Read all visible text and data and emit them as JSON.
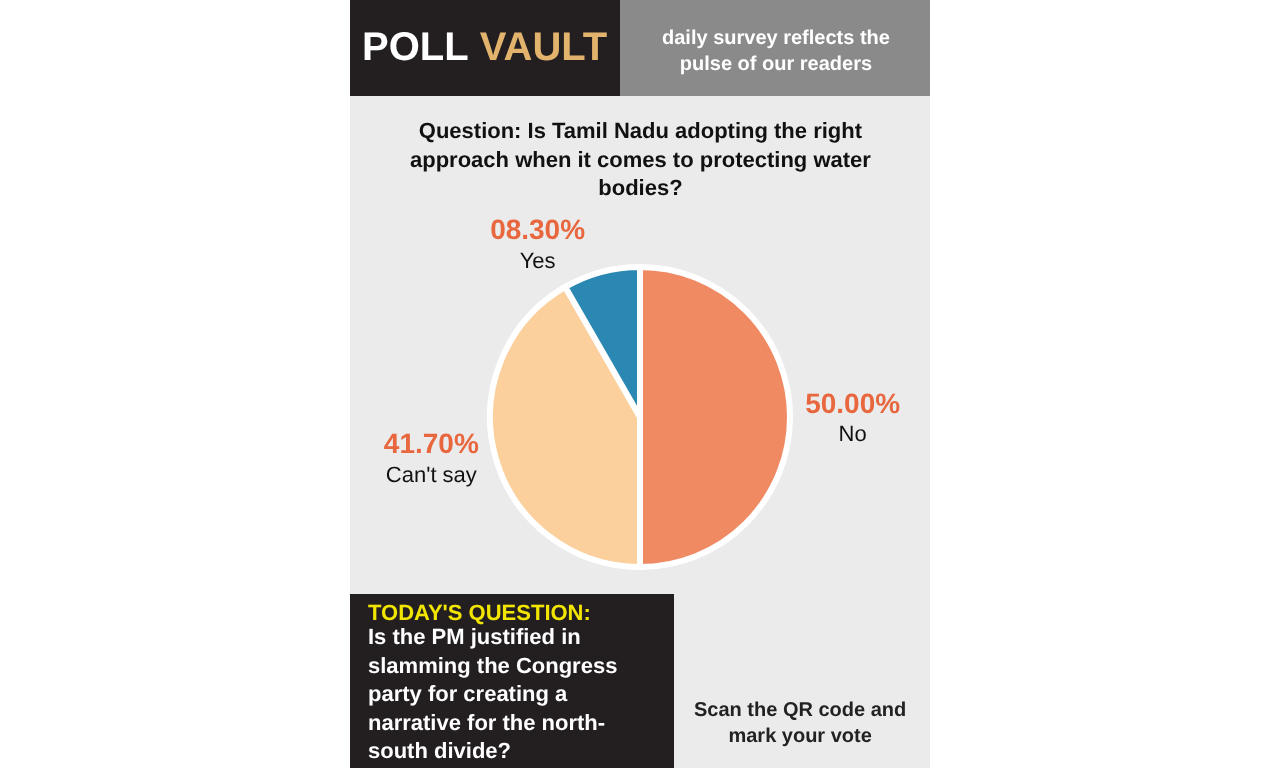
{
  "chart_data": {
    "type": "pie",
    "title": "POLL VAULT",
    "subtitle": "daily survey reflects the pulse of our readers",
    "categories": [
      "No",
      "Can't say",
      "Yes"
    ],
    "values": [
      50.0,
      41.7,
      8.3
    ],
    "colors": [
      "#f08a63",
      "#fbd09c",
      "#2a88b3"
    ],
    "value_labels": [
      "50.00%",
      "41.70%",
      "08.30%"
    ],
    "annotations": [
      "Question: Is Tamil Nadu adopting the right approach when it comes to protecting water bodies?",
      "TODAY'S QUESTION:",
      "Is the PM justified in slamming the Congress party for creating a narrative for the north-south divide?",
      "Scan the QR code and mark your vote"
    ],
    "legend": false
  }
}
